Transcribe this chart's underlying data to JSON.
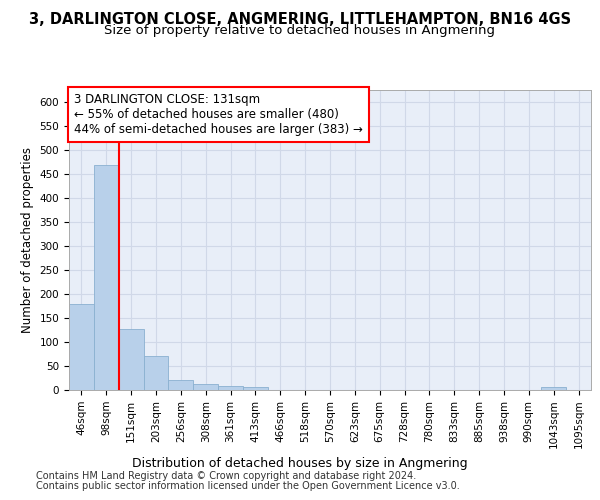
{
  "title": "3, DARLINGTON CLOSE, ANGMERING, LITTLEHAMPTON, BN16 4GS",
  "subtitle": "Size of property relative to detached houses in Angmering",
  "xlabel": "Distribution of detached houses by size in Angmering",
  "ylabel": "Number of detached properties",
  "footer_line1": "Contains HM Land Registry data © Crown copyright and database right 2024.",
  "footer_line2": "Contains public sector information licensed under the Open Government Licence v3.0.",
  "bar_labels": [
    "46sqm",
    "98sqm",
    "151sqm",
    "203sqm",
    "256sqm",
    "308sqm",
    "361sqm",
    "413sqm",
    "466sqm",
    "518sqm",
    "570sqm",
    "623sqm",
    "675sqm",
    "728sqm",
    "780sqm",
    "833sqm",
    "885sqm",
    "938sqm",
    "990sqm",
    "1043sqm",
    "1095sqm"
  ],
  "bar_values": [
    180,
    468,
    127,
    70,
    20,
    12,
    8,
    6,
    0,
    0,
    0,
    0,
    0,
    0,
    0,
    0,
    0,
    0,
    0,
    6,
    0
  ],
  "bar_color": "#b8d0ea",
  "bar_edge_color": "#8ab0d0",
  "grid_color": "#d0d8e8",
  "bg_color": "#e8eef8",
  "annotation_line1": "3 DARLINGTON CLOSE: 131sqm",
  "annotation_line2": "← 55% of detached houses are smaller (480)",
  "annotation_line3": "44% of semi-detached houses are larger (383) →",
  "annotation_box_color": "white",
  "annotation_box_edge": "red",
  "vline_color": "red",
  "vline_x": 1.5,
  "ylim": [
    0,
    625
  ],
  "yticks": [
    0,
    50,
    100,
    150,
    200,
    250,
    300,
    350,
    400,
    450,
    500,
    550,
    600
  ],
  "title_fontsize": 10.5,
  "subtitle_fontsize": 9.5,
  "ylabel_fontsize": 8.5,
  "xlabel_fontsize": 9,
  "tick_fontsize": 7.5,
  "annotation_fontsize": 8.5,
  "footer_fontsize": 7
}
